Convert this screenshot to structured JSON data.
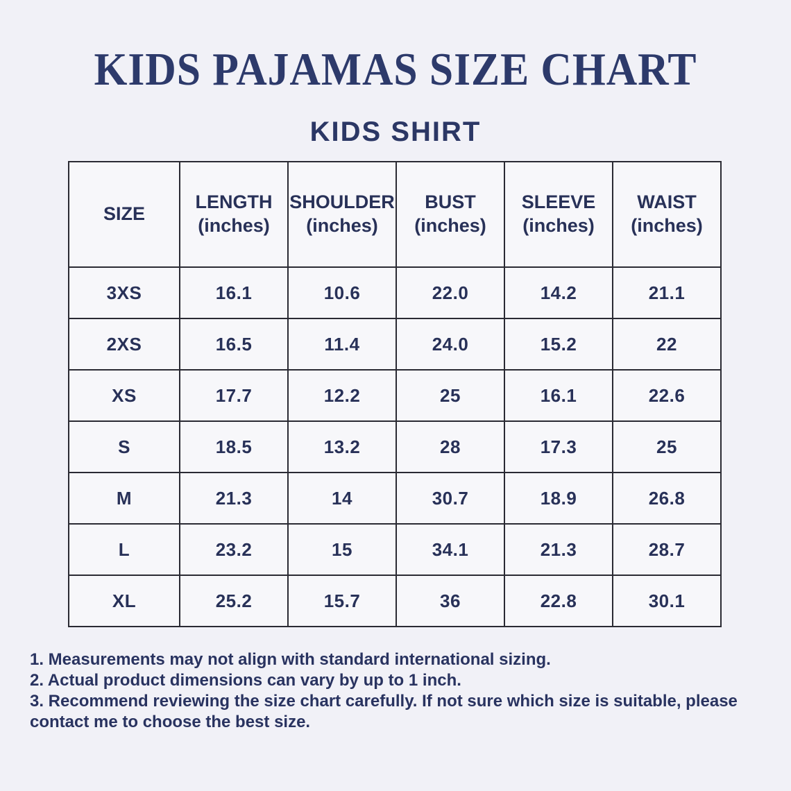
{
  "page": {
    "title": "KIDS PAJAMAS SIZE CHART",
    "subtitle": "KIDS SHIRT"
  },
  "colors": {
    "page_background": "#f1f1f7",
    "cell_background": "#f7f7fa",
    "table_border": "#2a2a33",
    "text_navy": "#2b3765"
  },
  "table": {
    "columns": [
      {
        "label": "SIZE",
        "sub": ""
      },
      {
        "label": "LENGTH",
        "sub": "(inches)"
      },
      {
        "label": "SHOULDER",
        "sub": "(inches)"
      },
      {
        "label": "BUST",
        "sub": "(inches)"
      },
      {
        "label": "SLEEVE",
        "sub": "(inches)"
      },
      {
        "label": "WAIST",
        "sub": "(inches)"
      }
    ],
    "rows": [
      {
        "size": "3XS",
        "length": "16.1",
        "shoulder": "10.6",
        "bust": "22.0",
        "sleeve": "14.2",
        "waist": "21.1"
      },
      {
        "size": "2XS",
        "length": "16.5",
        "shoulder": "11.4",
        "bust": "24.0",
        "sleeve": "15.2",
        "waist": "22"
      },
      {
        "size": "XS",
        "length": "17.7",
        "shoulder": "12.2",
        "bust": "25",
        "sleeve": "16.1",
        "waist": "22.6"
      },
      {
        "size": "S",
        "length": "18.5",
        "shoulder": "13.2",
        "bust": "28",
        "sleeve": "17.3",
        "waist": "25"
      },
      {
        "size": "M",
        "length": "21.3",
        "shoulder": "14",
        "bust": "30.7",
        "sleeve": "18.9",
        "waist": "26.8"
      },
      {
        "size": "L",
        "length": "23.2",
        "shoulder": "15",
        "bust": "34.1",
        "sleeve": "21.3",
        "waist": "28.7"
      },
      {
        "size": "XL",
        "length": "25.2",
        "shoulder": "15.7",
        "bust": "36",
        "sleeve": "22.8",
        "waist": "30.1"
      }
    ]
  },
  "notes": [
    "1. Measurements may not align with standard international sizing.",
    "2. Actual product dimensions can vary by up to 1 inch.",
    "3. Recommend reviewing the size chart carefully. If not sure which size is suitable, please contact me to choose the best size."
  ]
}
